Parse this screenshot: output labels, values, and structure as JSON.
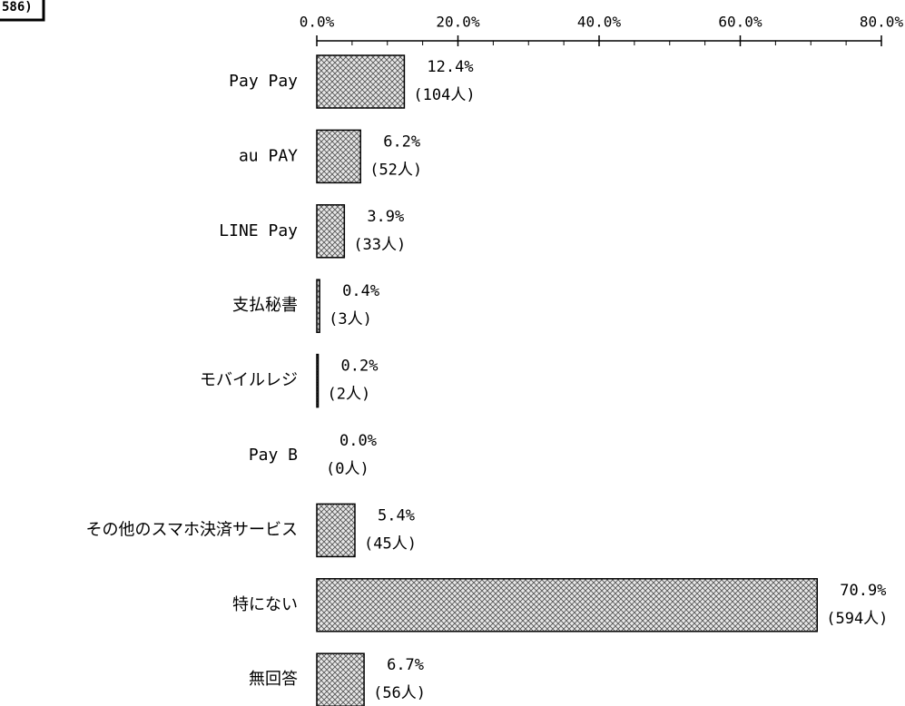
{
  "chart_data": {
    "type": "barh",
    "note": "586)",
    "categories": [
      "Pay Pay",
      "au PAY",
      "LINE Pay",
      "支払秘書",
      "モバイルレジ",
      "Pay B",
      "その他のスマホ決済サービス",
      "特にない",
      "無回答"
    ],
    "values": [
      12.4,
      6.2,
      3.9,
      0.4,
      0.2,
      0.0,
      5.4,
      70.9,
      6.7
    ],
    "value_labels": [
      "12.4%",
      "6.2%",
      "3.9%",
      "0.4%",
      "0.2%",
      "0.0%",
      "5.4%",
      "70.9%",
      "6.7%"
    ],
    "count_labels": [
      "(104人)",
      "(52人)",
      "(33人)",
      "(3人)",
      "(2人)",
      "(0人)",
      "(45人)",
      "(594人)",
      "(56人)"
    ],
    "xlim": [
      0,
      80
    ],
    "xticks": [
      {
        "value": 0,
        "label": "0.0%"
      },
      {
        "value": 20,
        "label": "20.0%"
      },
      {
        "value": 40,
        "label": "40.0%"
      },
      {
        "value": 60,
        "label": "60.0%"
      },
      {
        "value": 80,
        "label": "80.0%"
      }
    ],
    "xticks_minor": [
      5,
      10,
      15,
      25,
      30,
      35,
      45,
      50,
      55,
      65,
      70,
      75
    ],
    "grid": false
  }
}
